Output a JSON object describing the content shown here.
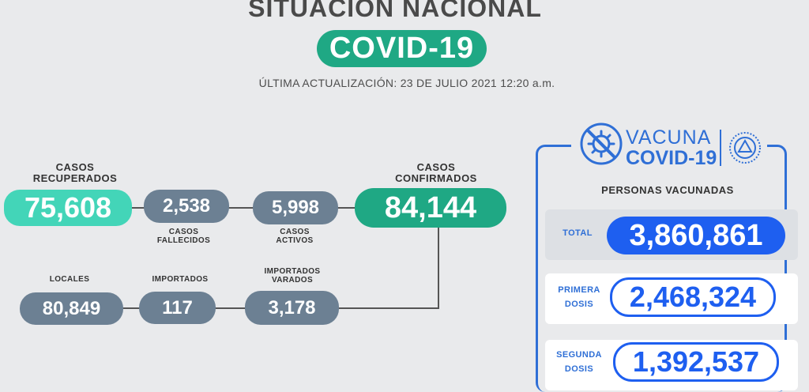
{
  "header": {
    "title": "SITUACIÓN NACIONAL",
    "badge": "COVID-19",
    "updated": "ÚLTIMA ACTUALIZACIÓN: 23 DE JULIO 2021 12:20 a.m."
  },
  "stats": {
    "recuperados": {
      "label": "CASOS RECUPERADOS",
      "value": "75,608"
    },
    "fallecidos": {
      "label": "CASOS FALLECIDOS",
      "value": "2,538"
    },
    "activos": {
      "label": "CASOS ACTIVOS",
      "value": "5,998"
    },
    "confirmados": {
      "label": "CASOS CONFIRMADOS",
      "value": "84,144"
    },
    "locales": {
      "label": "LOCALES",
      "value": "80,849"
    },
    "importados": {
      "label": "IMPORTADOS",
      "value": "117"
    },
    "importados_varados": {
      "label": "IMPORTADOS VARADOS",
      "value": "3,178"
    }
  },
  "vacuna": {
    "logo_word": "VACUNA",
    "logo_covid": "COVID-19",
    "subtitle": "PERSONAS VACUNADAS",
    "total": {
      "label": "TOTAL",
      "value": "3,860,861"
    },
    "primera": {
      "label_1": "PRIMERA",
      "label_2": "DOSIS",
      "value": "2,468,324"
    },
    "segunda": {
      "label_1": "SEGUNDA",
      "label_2": "DOSIS",
      "value": "1,392,537"
    }
  },
  "colors": {
    "teal": "#1fa884",
    "mint": "#43d5b8",
    "slate": "#6c8093",
    "blue": "#1e5ff0"
  },
  "icons": [
    "virus-no-icon",
    "el-salvador-seal-icon"
  ]
}
